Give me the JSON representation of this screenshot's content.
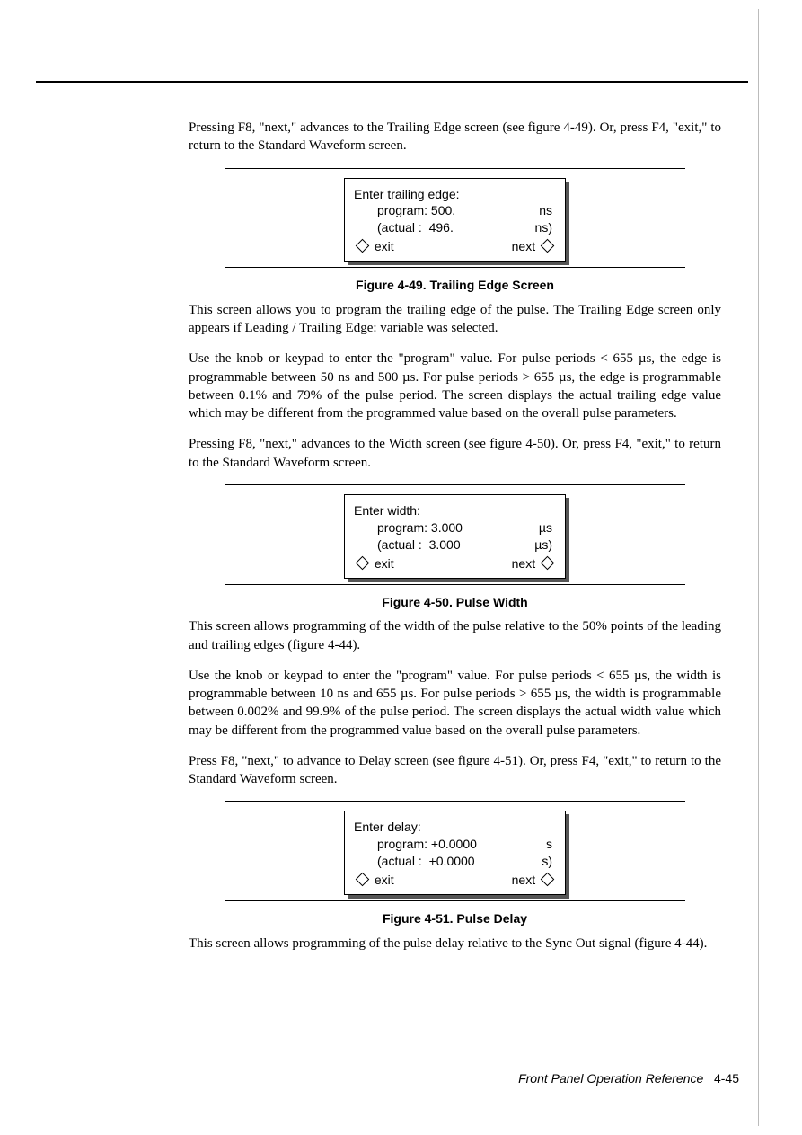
{
  "intro_para": "Pressing F8, \"next,\" advances to the Trailing Edge screen (see figure 4-49). Or, press F4, \"exit,\" to return to the Standard Waveform screen.",
  "fig49": {
    "title": "Enter trailing edge:",
    "program_label": "program:",
    "program_value": "500.",
    "program_unit": "ns",
    "actual_label": "(actual :",
    "actual_value": "496.",
    "actual_unit": "ns)",
    "exit": "exit",
    "next": "next",
    "caption": "Figure 4-49.  Trailing Edge Screen"
  },
  "p49a": "This screen allows you to program the trailing edge of the pulse. The Trailing Edge screen only appears if Leading / Trailing Edge: variable was selected.",
  "p49b": "Use the knob or keypad to enter the \"program\" value. For pulse periods < 655 µs, the edge is programmable between 50 ns and 500 µs. For pulse periods > 655 µs, the edge is programmable between 0.1% and 79% of the pulse period. The screen displays the actual trailing edge value which may be different from the programmed value based on the overall pulse parameters.",
  "p49c": "Pressing F8, \"next,\" advances to the Width screen (see figure 4-50). Or, press F4, \"exit,\" to return to the Standard Waveform screen.",
  "fig50": {
    "title": "Enter width:",
    "program_label": "program:",
    "program_value": "3.000",
    "program_unit": "µs",
    "actual_label": "(actual :",
    "actual_value": "3.000",
    "actual_unit": "µs)",
    "exit": "exit",
    "next": "next",
    "caption": "Figure 4-50.  Pulse Width"
  },
  "p50a": "This screen allows programming of the width of the pulse relative to the 50% points of the leading and trailing edges (figure 4-44).",
  "p50b": "Use the knob or keypad to enter the \"program\" value. For pulse periods < 655 µs, the width is programmable between 10 ns and 655 µs. For pulse periods > 655 µs, the width is programmable between 0.002% and 99.9% of the pulse period. The screen displays the actual width value which may be different from the programmed value based on the overall pulse parameters.",
  "p50c": "Press F8, \"next,\" to advance to Delay screen (see figure 4-51). Or, press F4, \"exit,\" to return to the Standard Waveform screen.",
  "fig51": {
    "title": "Enter delay:",
    "program_label": "program:",
    "program_value": "+0.0000",
    "program_unit": "s",
    "actual_label": "(actual :",
    "actual_value": "+0.0000",
    "actual_unit": "s)",
    "exit": "exit",
    "next": "next",
    "caption": "Figure 4-51.  Pulse Delay"
  },
  "p51a": "This screen allows programming of the pulse delay relative to the Sync Out signal (figure 4-44).",
  "footer_text": "Front Panel Operation Reference",
  "footer_page": "4-45"
}
